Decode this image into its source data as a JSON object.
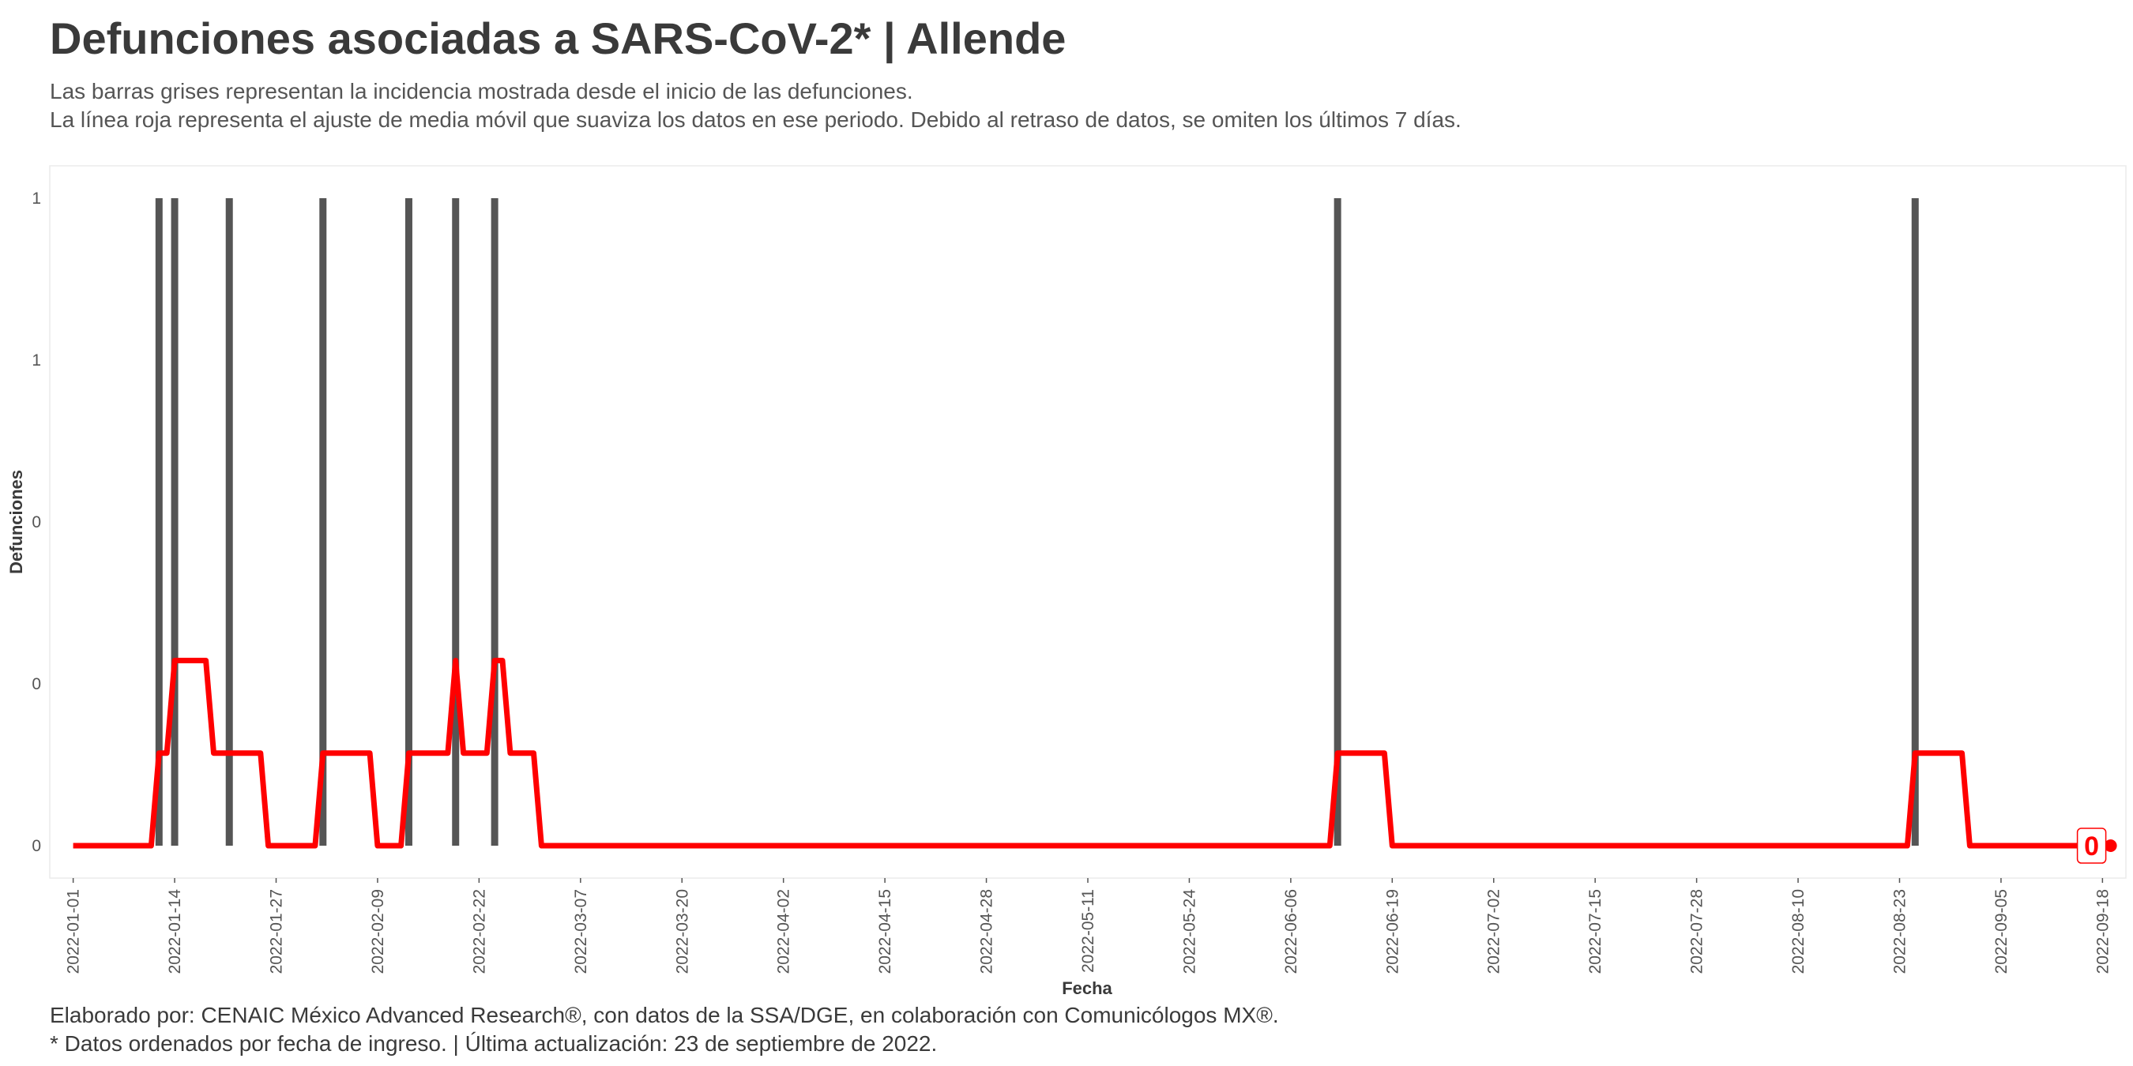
{
  "title": "Defunciones asociadas a SARS-CoV-2* | Allende",
  "subtitle": [
    "Las barras grises representan la incidencia mostrada desde el inicio de las defunciones.",
    "La línea roja representa el ajuste de media móvil que suaviza los datos en ese periodo. Debido al retraso de datos, se omiten los últimos 7 días."
  ],
  "caption": [
    "Elaborado por: CENAIC México Advanced Research®, con datos de la SSA/DGE, en colaboración con Comunicólogos MX®.",
    "* Datos ordenados por fecha de ingreso. | Última actualización: 23 de septiembre de 2022."
  ],
  "colors": {
    "bar": "#555555",
    "line": "#ff0000",
    "text": "#3a3a3a"
  },
  "chart_data": {
    "type": "bar",
    "xlabel": "Fecha",
    "ylabel": "Defunciones",
    "xlim": [
      "2021-12-29",
      "2022-09-21"
    ],
    "ylim": [
      -0.05,
      1.05
    ],
    "x_ticks": [
      "2022-01-01",
      "2022-01-14",
      "2022-01-27",
      "2022-02-09",
      "2022-02-22",
      "2022-03-07",
      "2022-03-20",
      "2022-04-02",
      "2022-04-15",
      "2022-04-28",
      "2022-05-11",
      "2022-05-24",
      "2022-06-06",
      "2022-06-19",
      "2022-07-02",
      "2022-07-15",
      "2022-07-28",
      "2022-08-10",
      "2022-08-23",
      "2022-09-05",
      "2022-09-18"
    ],
    "y_ticks": [
      0,
      0.25,
      0.5,
      0.75,
      1
    ],
    "y_tick_labels": [
      "0",
      "0",
      "0",
      "1",
      "1"
    ],
    "grid": false,
    "bars": {
      "dates": [
        "2022-01-12",
        "2022-01-14",
        "2022-01-21",
        "2022-02-02",
        "2022-02-13",
        "2022-02-19",
        "2022-02-24",
        "2022-06-12",
        "2022-08-25"
      ],
      "values": [
        1,
        1,
        1,
        1,
        1,
        1,
        1,
        1,
        1
      ]
    },
    "moving_average": {
      "name": "media móvil",
      "points": [
        [
          "2022-01-01",
          0
        ],
        [
          "2022-01-11",
          0
        ],
        [
          "2022-01-12",
          0.143
        ],
        [
          "2022-01-13",
          0.143
        ],
        [
          "2022-01-14",
          0.286
        ],
        [
          "2022-01-18",
          0.286
        ],
        [
          "2022-01-19",
          0.143
        ],
        [
          "2022-01-25",
          0.143
        ],
        [
          "2022-01-26",
          0
        ],
        [
          "2022-01-30",
          0
        ],
        [
          "2022-01-31",
          0
        ],
        [
          "2022-02-01",
          0
        ],
        [
          "2022-02-02",
          0.143
        ],
        [
          "2022-02-08",
          0.143
        ],
        [
          "2022-02-09",
          0
        ],
        [
          "2022-02-12",
          0
        ],
        [
          "2022-02-13",
          0.143
        ],
        [
          "2022-02-18",
          0.143
        ],
        [
          "2022-02-19",
          0.286
        ],
        [
          "2022-02-20",
          0.143
        ],
        [
          "2022-02-23",
          0.143
        ],
        [
          "2022-02-24",
          0.286
        ],
        [
          "2022-02-25",
          0.286
        ],
        [
          "2022-02-26",
          0.143
        ],
        [
          "2022-03-01",
          0.143
        ],
        [
          "2022-03-02",
          0
        ],
        [
          "2022-06-11",
          0
        ],
        [
          "2022-06-12",
          0.143
        ],
        [
          "2022-06-18",
          0.143
        ],
        [
          "2022-06-19",
          0
        ],
        [
          "2022-08-24",
          0
        ],
        [
          "2022-08-25",
          0.143
        ],
        [
          "2022-08-31",
          0.143
        ],
        [
          "2022-09-01",
          0
        ],
        [
          "2022-09-16",
          0
        ]
      ],
      "end_label": "0"
    }
  }
}
